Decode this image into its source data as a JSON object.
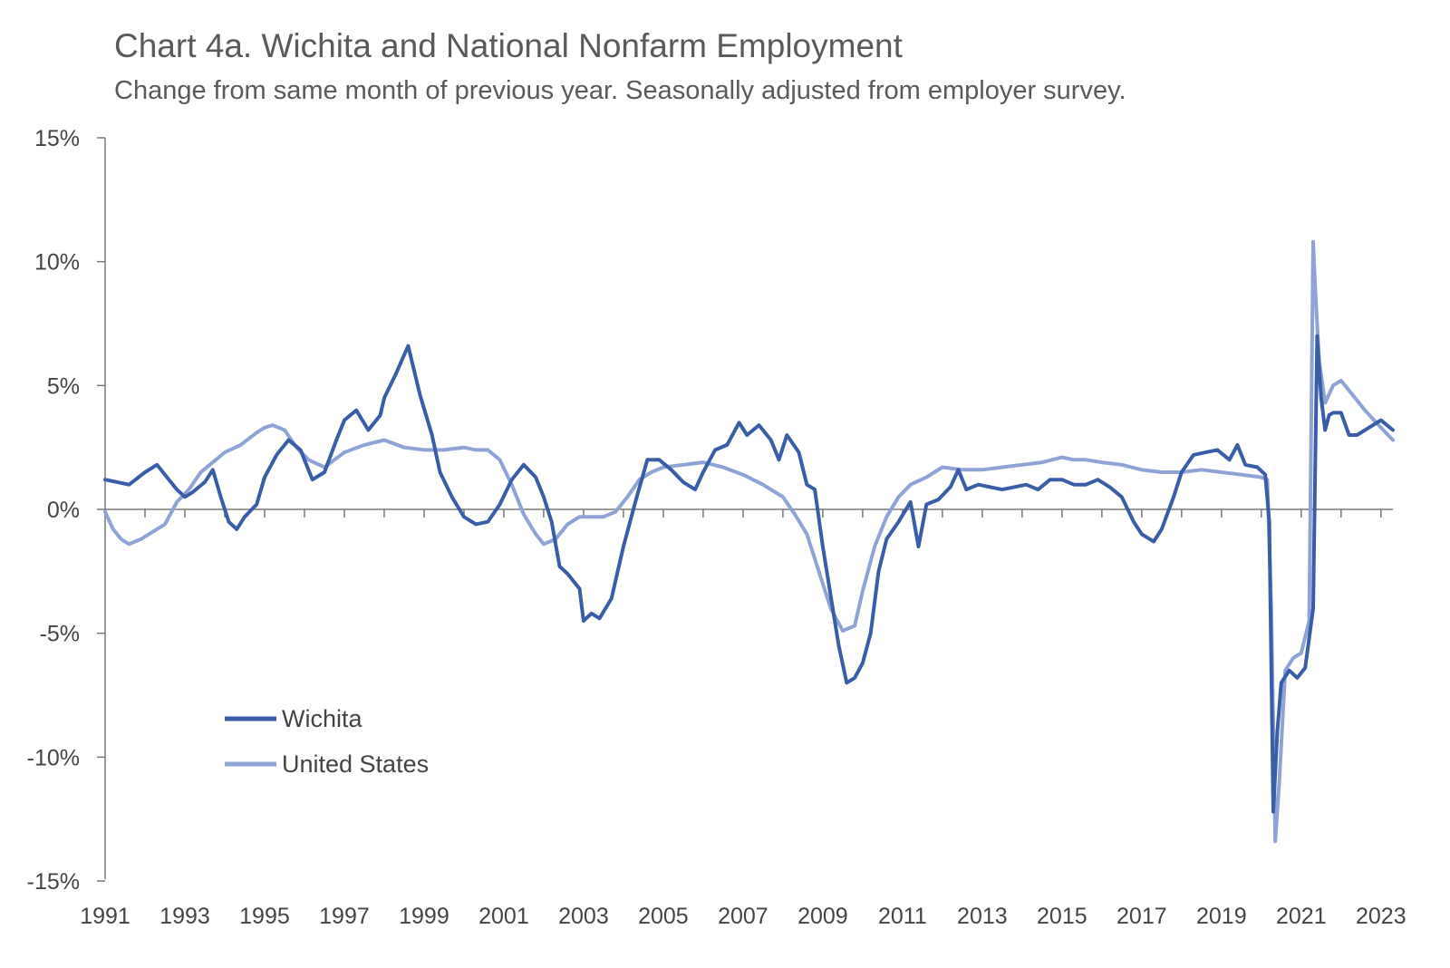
{
  "chart_data": {
    "type": "line",
    "title": "Chart 4a. Wichita and National Nonfarm Employment",
    "subtitle": "Change from same month of previous year. Seasonally adjusted from employer survey.",
    "xlabel": "",
    "ylabel": "",
    "xlim": [
      1991,
      2023.3
    ],
    "ylim": [
      -15,
      15
    ],
    "y_ticks": [
      15,
      10,
      5,
      0,
      -5,
      -10,
      -15
    ],
    "y_tick_labels": [
      "15%",
      "10%",
      "5%",
      "0%",
      "-5%",
      "-10%",
      "-15%"
    ],
    "x_ticks": [
      1991,
      1993,
      1995,
      1997,
      1999,
      2001,
      2003,
      2005,
      2007,
      2009,
      2011,
      2013,
      2015,
      2017,
      2019,
      2021,
      2023
    ],
    "x_tick_labels": [
      "1991",
      "1993",
      "1995",
      "1997",
      "1999",
      "2001",
      "2003",
      "2005",
      "2007",
      "2009",
      "2011",
      "2013",
      "2015",
      "2017",
      "2019",
      "2021",
      "2023"
    ],
    "grid": false,
    "legend_position": "lower-left",
    "series": [
      {
        "name": "Wichita",
        "color": "#3A5DA8",
        "x": [
          1991.0,
          1991.3,
          1991.6,
          1992.0,
          1992.3,
          1992.6,
          1992.8,
          1993.0,
          1993.2,
          1993.5,
          1993.7,
          1993.9,
          1994.1,
          1994.3,
          1994.5,
          1994.8,
          1995.0,
          1995.3,
          1995.6,
          1995.9,
          1996.2,
          1996.5,
          1996.8,
          1997.0,
          1997.3,
          1997.6,
          1997.9,
          1998.0,
          1998.3,
          1998.6,
          1998.9,
          1999.2,
          1999.4,
          1999.7,
          2000.0,
          2000.3,
          2000.6,
          2000.9,
          2001.2,
          2001.5,
          2001.8,
          2002.0,
          2002.2,
          2002.4,
          2002.6,
          2002.9,
          2003.0,
          2003.2,
          2003.4,
          2003.7,
          2004.0,
          2004.3,
          2004.6,
          2004.9,
          2005.2,
          2005.5,
          2005.8,
          2006.0,
          2006.3,
          2006.6,
          2006.9,
          2007.1,
          2007.4,
          2007.7,
          2007.9,
          2008.1,
          2008.4,
          2008.6,
          2008.8,
          2009.0,
          2009.2,
          2009.4,
          2009.6,
          2009.8,
          2010.0,
          2010.2,
          2010.4,
          2010.6,
          2010.9,
          2011.2,
          2011.4,
          2011.6,
          2011.9,
          2012.2,
          2012.4,
          2012.6,
          2012.9,
          2013.2,
          2013.5,
          2013.8,
          2014.1,
          2014.4,
          2014.7,
          2015.0,
          2015.3,
          2015.6,
          2015.9,
          2016.2,
          2016.5,
          2016.8,
          2017.0,
          2017.3,
          2017.5,
          2017.8,
          2018.0,
          2018.3,
          2018.6,
          2018.9,
          2019.2,
          2019.4,
          2019.6,
          2019.9,
          2020.1,
          2020.2,
          2020.3,
          2020.4,
          2020.5,
          2020.7,
          2020.9,
          2021.1,
          2021.3,
          2021.4,
          2021.5,
          2021.6,
          2021.7,
          2021.8,
          2022.0,
          2022.2,
          2022.4,
          2022.7,
          2023.0,
          2023.3
        ],
        "values": [
          1.2,
          1.1,
          1.0,
          1.5,
          1.8,
          1.2,
          0.8,
          0.5,
          0.7,
          1.1,
          1.6,
          0.5,
          -0.5,
          -0.8,
          -0.3,
          0.2,
          1.3,
          2.2,
          2.8,
          2.4,
          1.2,
          1.5,
          2.8,
          3.6,
          4.0,
          3.2,
          3.8,
          4.5,
          5.5,
          6.6,
          4.6,
          3.0,
          1.5,
          0.5,
          -0.3,
          -0.6,
          -0.5,
          0.2,
          1.2,
          1.8,
          1.3,
          0.5,
          -0.5,
          -2.3,
          -2.6,
          -3.2,
          -4.5,
          -4.2,
          -4.4,
          -3.6,
          -1.5,
          0.3,
          2.0,
          2.0,
          1.6,
          1.1,
          0.8,
          1.5,
          2.4,
          2.6,
          3.5,
          3.0,
          3.4,
          2.8,
          2.0,
          3.0,
          2.3,
          1.0,
          0.8,
          -1.5,
          -3.5,
          -5.5,
          -7.0,
          -6.8,
          -6.2,
          -5.0,
          -2.5,
          -1.2,
          -0.5,
          0.3,
          -1.5,
          0.2,
          0.4,
          0.9,
          1.6,
          0.8,
          1.0,
          0.9,
          0.8,
          0.9,
          1.0,
          0.8,
          1.2,
          1.2,
          1.0,
          1.0,
          1.2,
          0.9,
          0.5,
          -0.5,
          -1.0,
          -1.3,
          -0.8,
          0.5,
          1.5,
          2.2,
          2.3,
          2.4,
          2.0,
          2.6,
          1.8,
          1.7,
          1.4,
          -0.5,
          -12.2,
          -9.0,
          -7.0,
          -6.5,
          -6.8,
          -6.4,
          -4.0,
          7.0,
          4.5,
          3.2,
          3.8,
          3.9,
          3.9,
          3.0,
          3.0,
          3.3,
          3.6,
          3.2
        ],
        "note": ""
      },
      {
        "name": "United States",
        "color": "#8FA3D6",
        "x": [
          1991.0,
          1991.2,
          1991.4,
          1991.6,
          1991.9,
          1992.2,
          1992.5,
          1992.8,
          1993.1,
          1993.4,
          1993.7,
          1994.0,
          1994.4,
          1994.8,
          1995.0,
          1995.2,
          1995.5,
          1995.8,
          1996.1,
          1996.5,
          1997.0,
          1997.5,
          1998.0,
          1998.5,
          1999.0,
          1999.5,
          2000.0,
          2000.3,
          2000.6,
          2000.9,
          2001.2,
          2001.5,
          2001.8,
          2002.0,
          2002.3,
          2002.6,
          2002.9,
          2003.2,
          2003.5,
          2003.8,
          2004.1,
          2004.4,
          2004.7,
          2005.0,
          2005.5,
          2006.0,
          2006.5,
          2007.0,
          2007.5,
          2008.0,
          2008.3,
          2008.6,
          2008.9,
          2009.2,
          2009.5,
          2009.8,
          2010.0,
          2010.3,
          2010.6,
          2010.9,
          2011.2,
          2011.6,
          2012.0,
          2012.5,
          2013.0,
          2013.5,
          2014.0,
          2014.5,
          2015.0,
          2015.3,
          2015.6,
          2016.0,
          2016.5,
          2017.0,
          2017.5,
          2018.0,
          2018.5,
          2019.0,
          2019.5,
          2020.0,
          2020.15,
          2020.25,
          2020.35,
          2020.45,
          2020.6,
          2020.8,
          2021.0,
          2021.2,
          2021.3,
          2021.35,
          2021.45,
          2021.6,
          2021.8,
          2022.0,
          2022.3,
          2022.6,
          2023.0,
          2023.3
        ],
        "values": [
          -0.1,
          -0.8,
          -1.2,
          -1.4,
          -1.2,
          -0.9,
          -0.6,
          0.3,
          0.8,
          1.5,
          1.9,
          2.3,
          2.6,
          3.1,
          3.3,
          3.4,
          3.2,
          2.5,
          2.0,
          1.7,
          2.3,
          2.6,
          2.8,
          2.5,
          2.4,
          2.4,
          2.5,
          2.4,
          2.4,
          2.0,
          1.0,
          -0.2,
          -1.0,
          -1.4,
          -1.2,
          -0.6,
          -0.3,
          -0.3,
          -0.3,
          -0.1,
          0.5,
          1.2,
          1.5,
          1.7,
          1.8,
          1.9,
          1.7,
          1.4,
          1.0,
          0.5,
          -0.2,
          -1.0,
          -2.5,
          -4.0,
          -4.9,
          -4.7,
          -3.3,
          -1.5,
          -0.3,
          0.5,
          1.0,
          1.3,
          1.7,
          1.6,
          1.6,
          1.7,
          1.8,
          1.9,
          2.1,
          2.0,
          2.0,
          1.9,
          1.8,
          1.6,
          1.5,
          1.5,
          1.6,
          1.5,
          1.4,
          1.3,
          1.2,
          -4.0,
          -13.4,
          -11.0,
          -6.5,
          -6.0,
          -5.8,
          -4.5,
          10.8,
          9.0,
          6.0,
          4.3,
          5.0,
          5.2,
          4.6,
          4.0,
          3.3,
          2.8
        ],
        "note": ""
      }
    ]
  }
}
